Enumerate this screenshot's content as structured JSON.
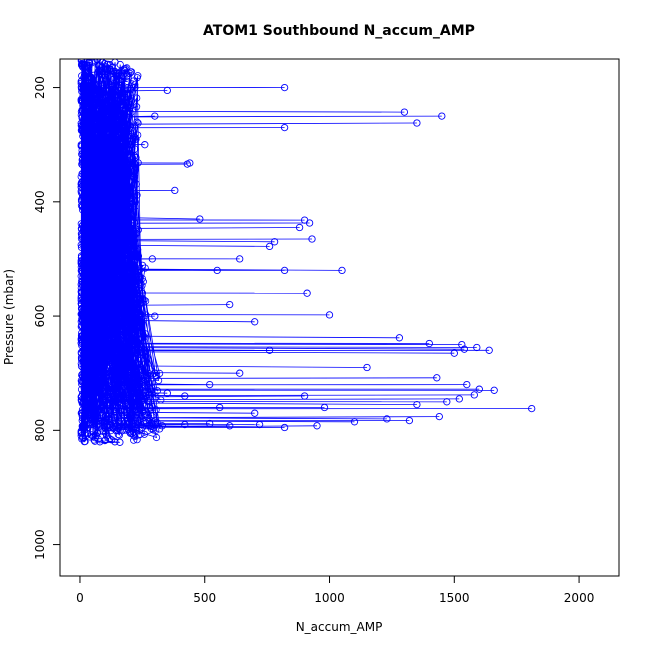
{
  "chart_data": {
    "type": "scatter",
    "title": "ATOM1 Southbound N_accum_AMP",
    "xlabel": "N_accum_AMP",
    "ylabel": "Pressure (mbar)",
    "xlim": [
      -80,
      2160
    ],
    "ylim": [
      150,
      1055
    ],
    "y_reversed": true,
    "x_ticks": [
      0,
      500,
      1000,
      1500,
      2000
    ],
    "y_ticks": [
      200,
      400,
      600,
      800,
      1000
    ],
    "grid": false,
    "legend": "none",
    "marker": "open-circle",
    "lines": true,
    "series": [
      {
        "color": "#0000ff",
        "points": [
          [
            820,
            200
          ],
          [
            350,
            205
          ],
          [
            1300,
            243
          ],
          [
            1450,
            250
          ],
          [
            1350,
            262
          ],
          [
            820,
            270
          ],
          [
            430,
            334
          ],
          [
            440,
            332
          ],
          [
            900,
            432
          ],
          [
            920,
            437
          ],
          [
            880,
            445
          ],
          [
            930,
            465
          ],
          [
            780,
            470
          ],
          [
            760,
            478
          ],
          [
            820,
            520
          ],
          [
            1050,
            520
          ],
          [
            910,
            560
          ],
          [
            1000,
            598
          ],
          [
            1280,
            638
          ],
          [
            1400,
            648
          ],
          [
            1530,
            650
          ],
          [
            1540,
            658
          ],
          [
            1590,
            655
          ],
          [
            1640,
            660
          ],
          [
            1500,
            665
          ],
          [
            1150,
            690
          ],
          [
            1430,
            708
          ],
          [
            1550,
            720
          ],
          [
            1600,
            728
          ],
          [
            1660,
            730
          ],
          [
            1580,
            738
          ],
          [
            1520,
            745
          ],
          [
            1470,
            750
          ],
          [
            1350,
            755
          ],
          [
            1810,
            762
          ],
          [
            1440,
            776
          ],
          [
            1320,
            783
          ],
          [
            1230,
            780
          ],
          [
            1100,
            785
          ],
          [
            950,
            792
          ],
          [
            820,
            795
          ],
          [
            720,
            790
          ],
          [
            600,
            792
          ],
          [
            520,
            788
          ],
          [
            420,
            790
          ],
          [
            330,
            792
          ],
          [
            250,
            795
          ],
          [
            150,
            800
          ],
          [
            120,
            815
          ],
          [
            100,
            818
          ],
          [
            80,
            820
          ],
          [
            60,
            819
          ],
          [
            140,
            820
          ],
          [
            160,
            821
          ],
          [
            300,
            700
          ],
          [
            240,
            650
          ],
          [
            300,
            600
          ],
          [
            250,
            560
          ],
          [
            290,
            500
          ],
          [
            200,
            450
          ],
          [
            380,
            380
          ],
          [
            260,
            300
          ],
          [
            300,
            250
          ],
          [
            220,
            200
          ],
          [
            180,
            170
          ],
          [
            120,
            160
          ],
          [
            600,
            580
          ],
          [
            700,
            610
          ],
          [
            550,
            520
          ],
          [
            480,
            430
          ],
          [
            640,
            500
          ],
          [
            760,
            660
          ],
          [
            520,
            720
          ],
          [
            640,
            700
          ],
          [
            900,
            740
          ],
          [
            980,
            760
          ],
          [
            700,
            770
          ],
          [
            560,
            760
          ],
          [
            420,
            740
          ],
          [
            350,
            735
          ],
          [
            260,
            745
          ],
          [
            140,
            740
          ],
          [
            90,
            760
          ],
          [
            40,
            780
          ]
        ]
      }
    ]
  }
}
